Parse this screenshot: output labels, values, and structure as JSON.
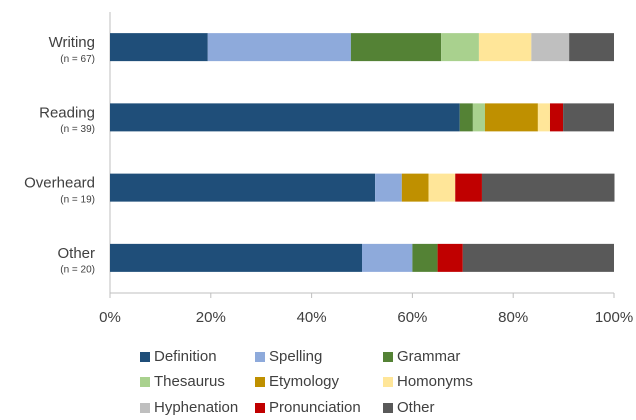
{
  "chart_data": {
    "type": "stacked-bar-horizontal",
    "categories": [
      "Writing",
      "Reading",
      "Overheard",
      "Other"
    ],
    "sample_sizes": [
      "(n = 67)",
      "(n = 39)",
      "(n = 19)",
      "(n = 20)"
    ],
    "series": [
      {
        "name": "Definition",
        "color": "#1f4e79",
        "values": [
          19.4,
          69.4,
          52.6,
          50
        ]
      },
      {
        "name": "Spelling",
        "color": "#8eaadb",
        "values": [
          28.4,
          0,
          5.3,
          10
        ]
      },
      {
        "name": "Grammar",
        "color": "#548235",
        "values": [
          17.9,
          2.6,
          0,
          5
        ]
      },
      {
        "name": "Thesaurus",
        "color": "#a9d18e",
        "values": [
          7.5,
          2.4,
          0,
          0
        ]
      },
      {
        "name": "Etymology",
        "color": "#bf9000",
        "values": [
          0,
          10.5,
          5.3,
          0
        ]
      },
      {
        "name": "Homonyms",
        "color": "#ffe699",
        "values": [
          10.4,
          2.4,
          5.3,
          0
        ]
      },
      {
        "name": "Hyphenation",
        "color": "#bfbfbf",
        "values": [
          7.5,
          0,
          0,
          0
        ]
      },
      {
        "name": "Pronunciation",
        "color": "#c00000",
        "values": [
          0,
          2.6,
          5.3,
          5
        ]
      },
      {
        "name": "Other",
        "color": "#595959",
        "values": [
          8.9,
          10.1,
          26.3,
          30
        ]
      }
    ],
    "xlim": [
      0,
      100
    ],
    "xticks": [
      {
        "value": 0,
        "label": "0%"
      },
      {
        "value": 20,
        "label": "20%"
      },
      {
        "value": 40,
        "label": "40%"
      },
      {
        "value": 60,
        "label": "60%"
      },
      {
        "value": 80,
        "label": "80%"
      },
      {
        "value": 100,
        "label": "100%"
      }
    ],
    "legend": "bottom"
  }
}
